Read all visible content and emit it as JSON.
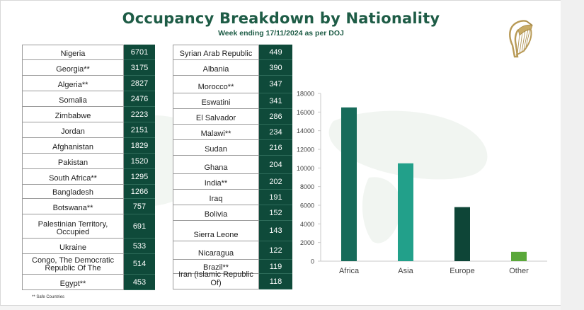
{
  "title": "Occupancy Breakdown by Nationality",
  "subtitle": "Week ending 17/11/2024 as per DOJ",
  "footnote": "** Safe Countries",
  "table_left": [
    {
      "name": "Nigeria",
      "value": "6701"
    },
    {
      "name": "Georgia**",
      "value": "3175"
    },
    {
      "name": "Algeria**",
      "value": "2827"
    },
    {
      "name": "Somalia",
      "value": "2476"
    },
    {
      "name": "Zimbabwe",
      "value": "2223"
    },
    {
      "name": "Jordan",
      "value": "2151"
    },
    {
      "name": "Afghanistan",
      "value": "1829"
    },
    {
      "name": "Pakistan",
      "value": "1520"
    },
    {
      "name": "South Africa**",
      "value": "1295"
    },
    {
      "name": "Bangladesh",
      "value": "1266"
    },
    {
      "name": "Botswana**",
      "value": "757"
    },
    {
      "name": "Palestinian Territory, Occupied",
      "value": "691"
    },
    {
      "name": "Ukraine",
      "value": "533"
    },
    {
      "name": "Congo, The Democratic Republic Of The",
      "value": "514"
    },
    {
      "name": "Egypt**",
      "value": "453"
    }
  ],
  "table_right": [
    {
      "name": "Syrian Arab Republic",
      "value": "449"
    },
    {
      "name": "Albania",
      "value": "390"
    },
    {
      "name": "Morocco**",
      "value": "347"
    },
    {
      "name": "Eswatini",
      "value": "341"
    },
    {
      "name": "El Salvador",
      "value": "286"
    },
    {
      "name": "Malawi**",
      "value": "234"
    },
    {
      "name": "Sudan",
      "value": "216"
    },
    {
      "name": "Ghana",
      "value": "204"
    },
    {
      "name": "India**",
      "value": "202"
    },
    {
      "name": "Iraq",
      "value": "191"
    },
    {
      "name": "Bolivia",
      "value": "152"
    },
    {
      "name": "Sierra Leone",
      "value": "143"
    },
    {
      "name": "Nicaragua",
      "value": "122"
    },
    {
      "name": "Brazil**",
      "value": "119"
    },
    {
      "name": "Iran (Islamic Republic Of)",
      "value": "118"
    }
  ],
  "colors": {
    "title": "#1e5c46",
    "table_value_bg": "#0f4a3a",
    "bar_africa": "#176b5a",
    "bar_asia": "#22a08a",
    "bar_europe": "#0e4537",
    "bar_other": "#5aa83a"
  },
  "chart_data": {
    "type": "bar",
    "categories": [
      "Africa",
      "Asia",
      "Europe",
      "Other"
    ],
    "values": [
      16500,
      10500,
      5800,
      1000
    ],
    "colors": [
      "#176b5a",
      "#22a08a",
      "#0e4537",
      "#5aa83a"
    ],
    "title": "",
    "xlabel": "",
    "ylabel": "",
    "ylim": [
      0,
      18000
    ],
    "yticks": [
      "0",
      "2000",
      "4000",
      "6000",
      "8000",
      "10000",
      "12000",
      "14000",
      "16000",
      "18000"
    ],
    "grid": false,
    "legend": "none"
  }
}
